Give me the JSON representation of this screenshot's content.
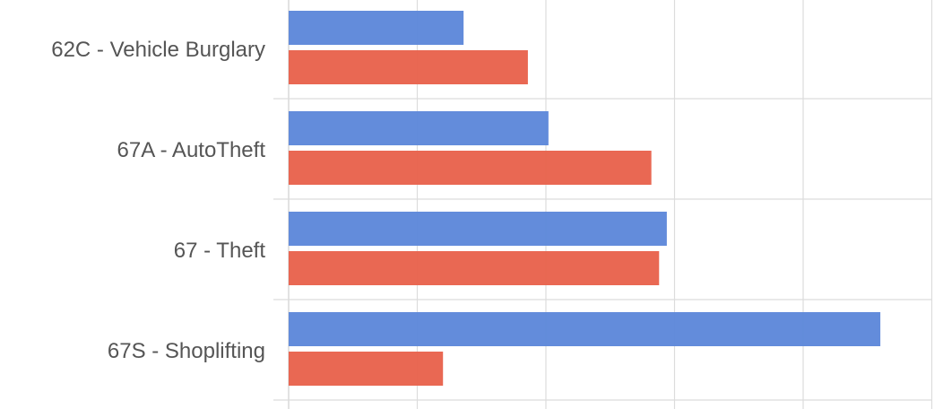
{
  "chart_data": {
    "type": "bar",
    "orientation": "horizontal",
    "categories": [
      "62C - Vehicle Burglary",
      "67A - AutoTheft",
      "67 - Theft",
      "67S - Shoplifting"
    ],
    "series": [
      {
        "color": "#5b86d9",
        "values": [
          68,
          101,
          147,
          230
        ]
      },
      {
        "color": "#e8604a",
        "values": [
          93,
          141,
          144,
          60
        ]
      }
    ],
    "xlim": [
      0,
      250
    ],
    "grid": true,
    "legend": "none"
  }
}
